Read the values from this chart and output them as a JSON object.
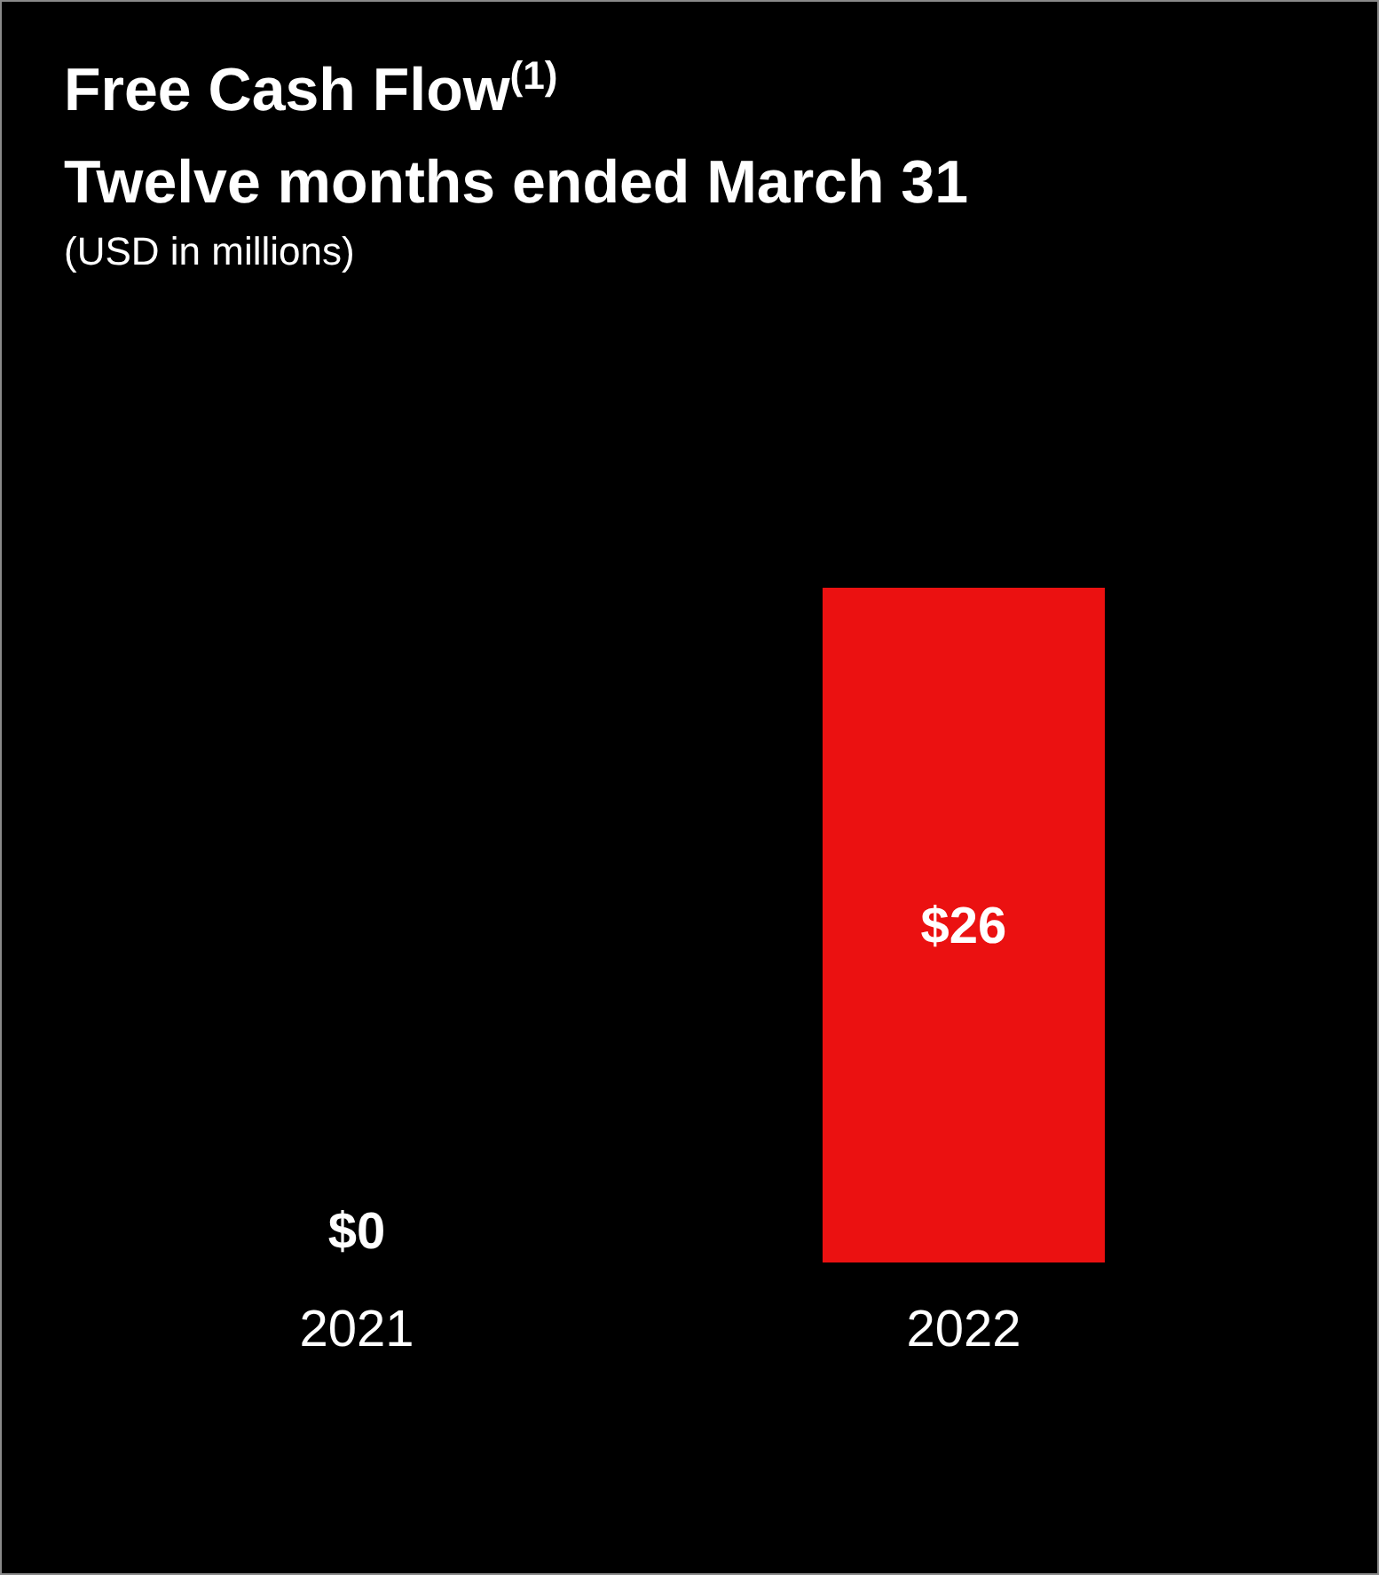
{
  "chart_data": {
    "type": "bar",
    "title": "Free Cash Flow$^{(1)}$",
    "subtitle": "Twelve months ended March 31",
    "annotations": [
      "(USD in millions)"
    ],
    "categories": [
      "2021",
      "2022"
    ],
    "values": [
      0,
      26
    ],
    "color": "#eb1111",
    "value_labels": [
      "$0",
      "$26"
    ]
  }
}
